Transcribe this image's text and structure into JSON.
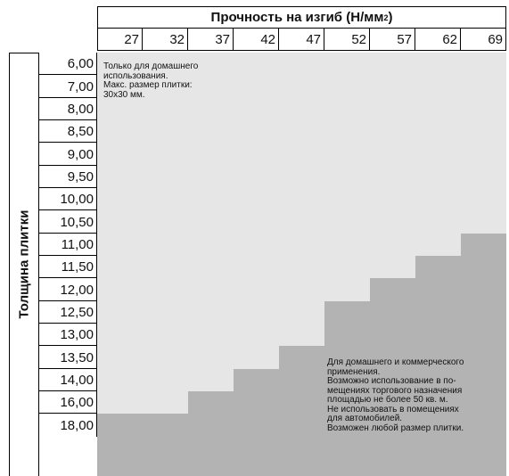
{
  "chart_data": {
    "type": "table",
    "title": "Прочность на изгиб (Н/мм",
    "title_sup": "2",
    "title_end": ")",
    "ylabel": "Толщина плитки",
    "columns": [
      "27",
      "32",
      "37",
      "42",
      "47",
      "52",
      "57",
      "62",
      "69"
    ],
    "rows": [
      "6,00",
      "7,00",
      "8,00",
      "8,50",
      "9,00",
      "9,50",
      "10,00",
      "10,50",
      "11,00",
      "11,50",
      "12,00",
      "12,50",
      "13,00",
      "13,50",
      "14,00",
      "16,00",
      "18,00"
    ],
    "commercial_start_row": [
      "18,00",
      "18,00",
      "16,00",
      "14,00",
      "13,50",
      "12,50",
      "12,00",
      "11,50",
      "11,00"
    ],
    "colors": {
      "domestic": "#e6e6e6",
      "commercial": "#b3b3b3",
      "line": "#000000"
    }
  },
  "notes": {
    "domestic": [
      "Только для домашнего",
      "использования.",
      "Макс. размер плитки:",
      "30x30 мм."
    ],
    "commercial": [
      "Для домашнего и коммерческого",
      "применения.",
      "Возможно использование в по-",
      "мещениях торгового назначения",
      "площадью не более 50 кв. м.",
      "Не использовать в помещениях",
      "для автомобилей.",
      "Возможен любой размер плитки."
    ]
  }
}
